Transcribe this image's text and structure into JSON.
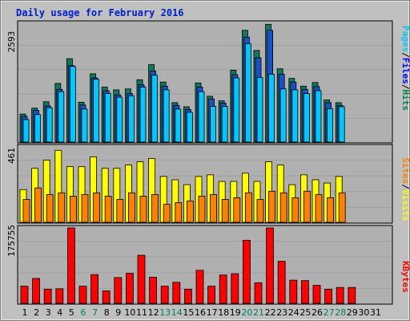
{
  "chart_data": [
    {
      "type": "bar",
      "title": "Daily usage for February 2016",
      "panel": "top",
      "ylim_label": "2593",
      "ymax": 2593,
      "right_label": [
        "Pages",
        "Files",
        "Hits"
      ],
      "colors": {
        "hits": "#0e7a5a",
        "files": "#1a4fc8",
        "pages": "#00c8ff",
        "hits_label": "#008040",
        "files_label": "#0000ff",
        "pages_label": "#00c8ff"
      },
      "categories": [
        "1",
        "2",
        "3",
        "4",
        "5",
        "6",
        "7",
        "8",
        "9",
        "10",
        "11",
        "12",
        "13",
        "14",
        "15",
        "16",
        "17",
        "18",
        "19",
        "20",
        "21",
        "22",
        "23",
        "24",
        "25",
        "26",
        "27",
        "28",
        "29",
        "30",
        "31"
      ],
      "series": [
        {
          "name": "Hits",
          "values": [
            610,
            740,
            880,
            1280,
            1820,
            870,
            1490,
            1200,
            1140,
            1160,
            1360,
            1690,
            1310,
            860,
            770,
            1290,
            1000,
            900,
            1570,
            2440,
            2000,
            2570,
            1600,
            1390,
            1220,
            1300,
            920,
            860,
            0,
            0,
            0
          ]
        },
        {
          "name": "Files",
          "values": [
            560,
            690,
            790,
            1150,
            1670,
            810,
            1400,
            1120,
            1030,
            1060,
            1250,
            1550,
            1220,
            800,
            710,
            1200,
            940,
            850,
            1470,
            2290,
            1840,
            2440,
            1480,
            1310,
            1150,
            1210,
            860,
            800,
            0,
            0,
            0
          ]
        },
        {
          "name": "Pages",
          "values": [
            490,
            600,
            750,
            1100,
            1650,
            720,
            1370,
            1060,
            980,
            1010,
            1200,
            1460,
            1140,
            720,
            650,
            1100,
            780,
            780,
            1400,
            2150,
            1410,
            1480,
            1160,
            1140,
            1060,
            1120,
            730,
            770,
            0,
            0,
            0
          ]
        }
      ]
    },
    {
      "type": "bar",
      "panel": "middle",
      "ylim_label": "461",
      "ymax": 461,
      "right_label": [
        "Sites",
        "Visits"
      ],
      "colors": {
        "visits": "#ffff00",
        "sites": "#ff8000",
        "sites_label": "#ff8000",
        "visits_label": "#ffff00"
      },
      "categories": [
        "1",
        "2",
        "3",
        "4",
        "5",
        "6",
        "7",
        "8",
        "9",
        "10",
        "11",
        "12",
        "13",
        "14",
        "15",
        "16",
        "17",
        "18",
        "19",
        "20",
        "21",
        "22",
        "23",
        "24",
        "25",
        "26",
        "27",
        "28",
        "29",
        "30",
        "31"
      ],
      "series": [
        {
          "name": "Visits",
          "values": [
            200,
            330,
            380,
            440,
            340,
            340,
            400,
            330,
            330,
            350,
            370,
            390,
            280,
            260,
            230,
            280,
            290,
            250,
            250,
            300,
            250,
            370,
            350,
            230,
            290,
            260,
            240,
            280,
            0,
            0,
            0
          ]
        },
        {
          "name": "Sites",
          "values": [
            140,
            210,
            170,
            180,
            160,
            170,
            180,
            160,
            140,
            180,
            160,
            170,
            110,
            120,
            130,
            160,
            170,
            140,
            150,
            180,
            140,
            190,
            180,
            150,
            190,
            170,
            150,
            180,
            0,
            0,
            0
          ]
        }
      ]
    },
    {
      "type": "bar",
      "panel": "bottom",
      "ylim_label": "175755",
      "ymax": 175755,
      "right_label": [
        "KBytes"
      ],
      "colors": {
        "kbytes": "#ff0000",
        "kbytes_label": "#ff0000"
      },
      "categories": [
        "1",
        "2",
        "3",
        "4",
        "5",
        "6",
        "7",
        "8",
        "9",
        "10",
        "11",
        "12",
        "13",
        "14",
        "15",
        "16",
        "17",
        "18",
        "19",
        "20",
        "21",
        "22",
        "23",
        "24",
        "25",
        "26",
        "27",
        "28",
        "29",
        "30",
        "31"
      ],
      "series": [
        {
          "name": "KBytes",
          "values": [
            40000,
            58000,
            33000,
            34000,
            175755,
            40000,
            67000,
            29000,
            60000,
            70000,
            112000,
            61000,
            40000,
            49000,
            33000,
            77000,
            40000,
            66000,
            69000,
            147000,
            48000,
            175755,
            98000,
            54000,
            53000,
            42000,
            33000,
            37000,
            37000,
            0,
            0
          ]
        }
      ]
    }
  ],
  "weekend_days": [
    "6",
    "7",
    "13",
    "14",
    "20",
    "21",
    "27",
    "28"
  ]
}
